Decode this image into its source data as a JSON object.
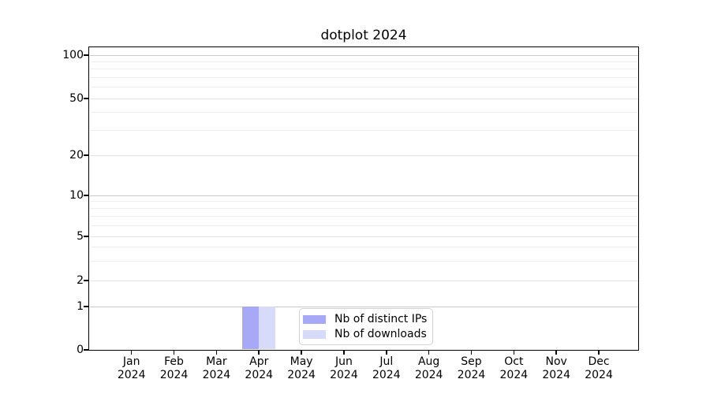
{
  "chart_data": {
    "type": "bar",
    "title": "dotplot 2024",
    "xlabel": "",
    "ylabel": "",
    "categories": [
      "Jan 2024",
      "Feb 2024",
      "Mar 2024",
      "Apr 2024",
      "May 2024",
      "Jun 2024",
      "Jul 2024",
      "Aug 2024",
      "Sep 2024",
      "Oct 2024",
      "Nov 2024",
      "Dec 2024"
    ],
    "series": [
      {
        "name": "Nb of distinct IPs",
        "color": "#a8a9f6",
        "values": [
          0,
          0,
          0,
          1,
          0,
          0,
          0,
          0,
          0,
          0,
          0,
          0
        ]
      },
      {
        "name": "Nb of downloads",
        "color": "#d8daf9",
        "values": [
          0,
          0,
          0,
          1,
          0,
          0,
          0,
          0,
          0,
          0,
          0,
          0
        ]
      }
    ],
    "yaxis": {
      "scale": "quasi-log (linear below 1, log above)",
      "ticks": [
        0,
        1,
        2,
        5,
        10,
        20,
        50,
        100
      ],
      "major_gridlines": [
        1,
        10,
        100
      ],
      "minor_gridlines": [
        3,
        4,
        6,
        7,
        8,
        9,
        30,
        40,
        60,
        70,
        80,
        90
      ],
      "ylim": [
        0,
        114
      ]
    },
    "grid": "horizontal",
    "legend": {
      "location": "lower center"
    }
  }
}
